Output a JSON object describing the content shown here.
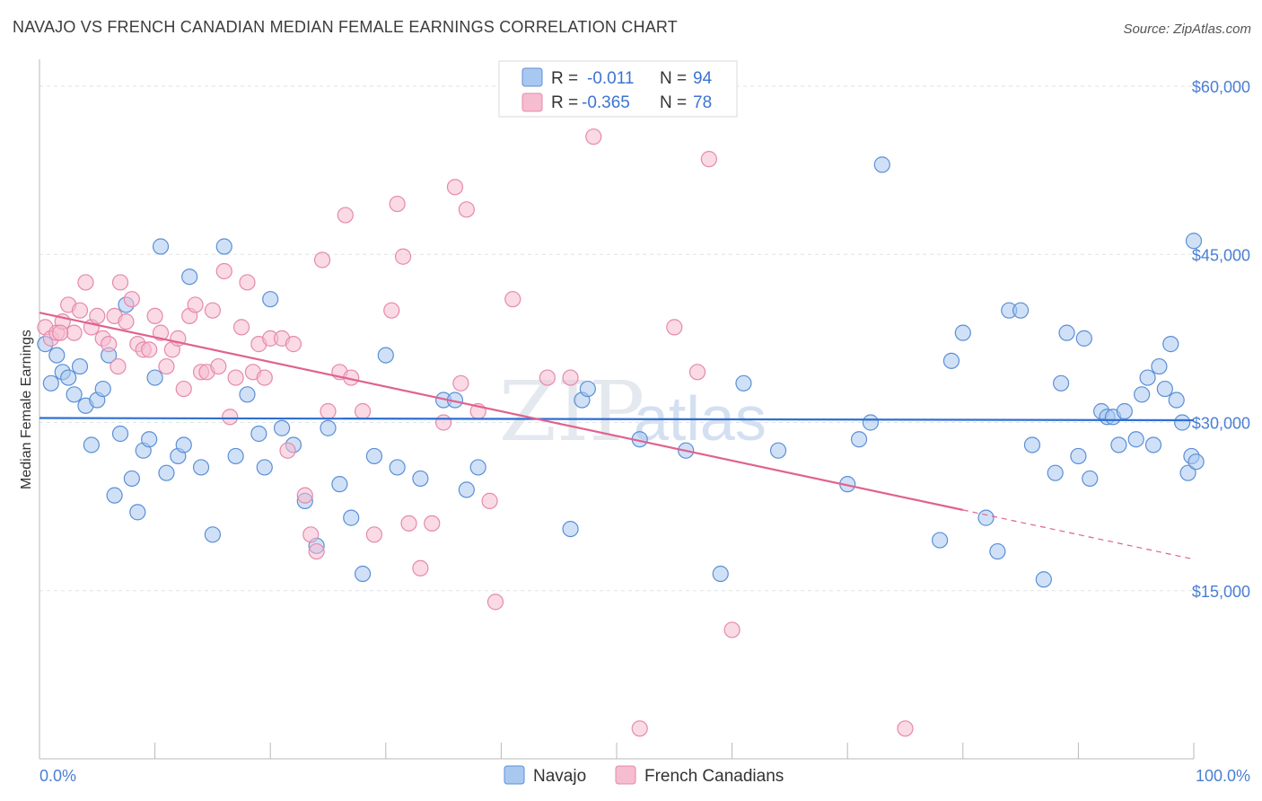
{
  "title": "NAVAJO VS FRENCH CANADIAN MEDIAN FEMALE EARNINGS CORRELATION CHART",
  "source": "Source: ZipAtlas.com",
  "watermark": {
    "zip": "ZIP",
    "atlas": "atlas"
  },
  "legend_top": [
    {
      "r_label": "R =",
      "r_value": "-0.011",
      "n_label": "N =",
      "n_value": "94"
    },
    {
      "r_label": "R =",
      "r_value": "-0.365",
      "n_label": "N =",
      "n_value": "78"
    }
  ],
  "legend_bottom": [
    "Navajo",
    "French Canadians"
  ],
  "chart_data": {
    "type": "scatter",
    "ylabel": "Median Female Earnings",
    "x_tick_labels": [
      "0.0%",
      "100.0%"
    ],
    "y_tick_labels": [
      "$15,000",
      "$30,000",
      "$45,000",
      "$60,000"
    ],
    "xlim": [
      0,
      100
    ],
    "ylim": [
      0,
      60000
    ],
    "y_ticks": [
      15000,
      30000,
      45000,
      60000
    ],
    "grid": true,
    "colors": {
      "navajo_fill": "#a9c8f0",
      "navajo_stroke": "#5b8fd6",
      "navajo_line": "#2f6fcf",
      "french_fill": "#f6bcd0",
      "french_stroke": "#e58aab",
      "french_line": "#e0628f"
    },
    "series": [
      {
        "name": "Navajo",
        "trend": {
          "x": [
            0,
            100
          ],
          "y": [
            30400,
            30200
          ]
        },
        "points": [
          [
            0.5,
            37000
          ],
          [
            1.0,
            33500
          ],
          [
            1.5,
            36000
          ],
          [
            2.0,
            34500
          ],
          [
            2.5,
            34000
          ],
          [
            3.0,
            32500
          ],
          [
            3.5,
            35000
          ],
          [
            4.0,
            31500
          ],
          [
            4.5,
            28000
          ],
          [
            5.0,
            32000
          ],
          [
            5.5,
            33000
          ],
          [
            6.0,
            36000
          ],
          [
            6.5,
            23500
          ],
          [
            7.0,
            29000
          ],
          [
            7.5,
            40500
          ],
          [
            8.0,
            25000
          ],
          [
            8.5,
            22000
          ],
          [
            9.0,
            27500
          ],
          [
            9.5,
            28500
          ],
          [
            10.0,
            34000
          ],
          [
            10.5,
            45700
          ],
          [
            11.0,
            25500
          ],
          [
            12.0,
            27000
          ],
          [
            12.5,
            28000
          ],
          [
            13.0,
            43000
          ],
          [
            14.0,
            26000
          ],
          [
            15.0,
            20000
          ],
          [
            16.0,
            45700
          ],
          [
            17.0,
            27000
          ],
          [
            18.0,
            32500
          ],
          [
            19.0,
            29000
          ],
          [
            19.5,
            26000
          ],
          [
            20.0,
            41000
          ],
          [
            21.0,
            29500
          ],
          [
            22.0,
            28000
          ],
          [
            23.0,
            23000
          ],
          [
            24.0,
            19000
          ],
          [
            25.0,
            29500
          ],
          [
            26.0,
            24500
          ],
          [
            27.0,
            21500
          ],
          [
            28.0,
            16500
          ],
          [
            29.0,
            27000
          ],
          [
            30.0,
            36000
          ],
          [
            31.0,
            26000
          ],
          [
            33.0,
            25000
          ],
          [
            35.0,
            32000
          ],
          [
            36.0,
            32000
          ],
          [
            37.0,
            24000
          ],
          [
            38.0,
            26000
          ],
          [
            46.0,
            20500
          ],
          [
            47.0,
            32000
          ],
          [
            47.5,
            33000
          ],
          [
            52.0,
            28500
          ],
          [
            56.0,
            27500
          ],
          [
            59.0,
            16500
          ],
          [
            61.0,
            33500
          ],
          [
            64.0,
            27500
          ],
          [
            70.0,
            24500
          ],
          [
            71.0,
            28500
          ],
          [
            72.0,
            30000
          ],
          [
            73.0,
            53000
          ],
          [
            78.0,
            19500
          ],
          [
            79.0,
            35500
          ],
          [
            80.0,
            38000
          ],
          [
            82.0,
            21500
          ],
          [
            83.0,
            18500
          ],
          [
            84.0,
            40000
          ],
          [
            85.0,
            40000
          ],
          [
            86.0,
            28000
          ],
          [
            87.0,
            16000
          ],
          [
            88.0,
            25500
          ],
          [
            88.5,
            33500
          ],
          [
            89.0,
            38000
          ],
          [
            90.0,
            27000
          ],
          [
            90.5,
            37500
          ],
          [
            91.0,
            25000
          ],
          [
            92.0,
            31000
          ],
          [
            92.5,
            30500
          ],
          [
            93.0,
            30500
          ],
          [
            93.5,
            28000
          ],
          [
            94.0,
            31000
          ],
          [
            95.0,
            28500
          ],
          [
            95.5,
            32500
          ],
          [
            96.0,
            34000
          ],
          [
            96.5,
            28000
          ],
          [
            97.0,
            35000
          ],
          [
            97.5,
            33000
          ],
          [
            98.0,
            37000
          ],
          [
            98.5,
            32000
          ],
          [
            99.0,
            30000
          ],
          [
            99.5,
            25500
          ],
          [
            99.8,
            27000
          ],
          [
            100.0,
            46200
          ],
          [
            100.2,
            26500
          ]
        ]
      },
      {
        "name": "French Canadians",
        "trend": {
          "x": [
            0,
            80
          ],
          "y": [
            39800,
            22200
          ]
        },
        "trend_extension": {
          "x": [
            80,
            100
          ],
          "y": [
            22200,
            17800
          ]
        },
        "points": [
          [
            0.5,
            38500
          ],
          [
            1.0,
            37500
          ],
          [
            1.5,
            38000
          ],
          [
            2.0,
            39000
          ],
          [
            2.5,
            40500
          ],
          [
            3.0,
            38000
          ],
          [
            3.5,
            40000
          ],
          [
            4.0,
            42500
          ],
          [
            4.5,
            38500
          ],
          [
            5.0,
            39500
          ],
          [
            5.5,
            37500
          ],
          [
            6.0,
            37000
          ],
          [
            6.5,
            39500
          ],
          [
            7.0,
            42500
          ],
          [
            7.5,
            39000
          ],
          [
            8.0,
            41000
          ],
          [
            8.5,
            37000
          ],
          [
            9.0,
            36500
          ],
          [
            9.5,
            36500
          ],
          [
            10.0,
            39500
          ],
          [
            10.5,
            38000
          ],
          [
            11.0,
            35000
          ],
          [
            11.5,
            36500
          ],
          [
            12.0,
            37500
          ],
          [
            12.5,
            33000
          ],
          [
            13.0,
            39500
          ],
          [
            13.5,
            40500
          ],
          [
            14.0,
            34500
          ],
          [
            14.5,
            34500
          ],
          [
            15.0,
            40000
          ],
          [
            15.5,
            35000
          ],
          [
            16.0,
            43500
          ],
          [
            16.5,
            30500
          ],
          [
            17.0,
            34000
          ],
          [
            17.5,
            38500
          ],
          [
            18.0,
            42500
          ],
          [
            18.5,
            34500
          ],
          [
            19.0,
            37000
          ],
          [
            19.5,
            34000
          ],
          [
            20.0,
            37500
          ],
          [
            21.0,
            37500
          ],
          [
            21.5,
            27500
          ],
          [
            22.0,
            37000
          ],
          [
            23.0,
            23500
          ],
          [
            23.5,
            20000
          ],
          [
            24.0,
            18500
          ],
          [
            24.5,
            44500
          ],
          [
            25.0,
            31000
          ],
          [
            26.0,
            34500
          ],
          [
            27.0,
            34000
          ],
          [
            26.5,
            48500
          ],
          [
            28.0,
            31000
          ],
          [
            29.0,
            20000
          ],
          [
            30.5,
            40000
          ],
          [
            31.0,
            49500
          ],
          [
            31.5,
            44800
          ],
          [
            32.0,
            21000
          ],
          [
            33.0,
            17000
          ],
          [
            34.0,
            21000
          ],
          [
            35.0,
            30000
          ],
          [
            36.0,
            51000
          ],
          [
            36.5,
            33500
          ],
          [
            37.0,
            49000
          ],
          [
            38.0,
            31000
          ],
          [
            39.0,
            23000
          ],
          [
            39.5,
            14000
          ],
          [
            41.0,
            41000
          ],
          [
            44.0,
            34000
          ],
          [
            46.0,
            34000
          ],
          [
            48.0,
            55500
          ],
          [
            52.0,
            2700
          ],
          [
            55.0,
            38500
          ],
          [
            57.0,
            34500
          ],
          [
            58.0,
            53500
          ],
          [
            60.0,
            11500
          ],
          [
            75.0,
            2700
          ],
          [
            1.8,
            38000
          ],
          [
            6.8,
            35000
          ]
        ]
      }
    ]
  }
}
